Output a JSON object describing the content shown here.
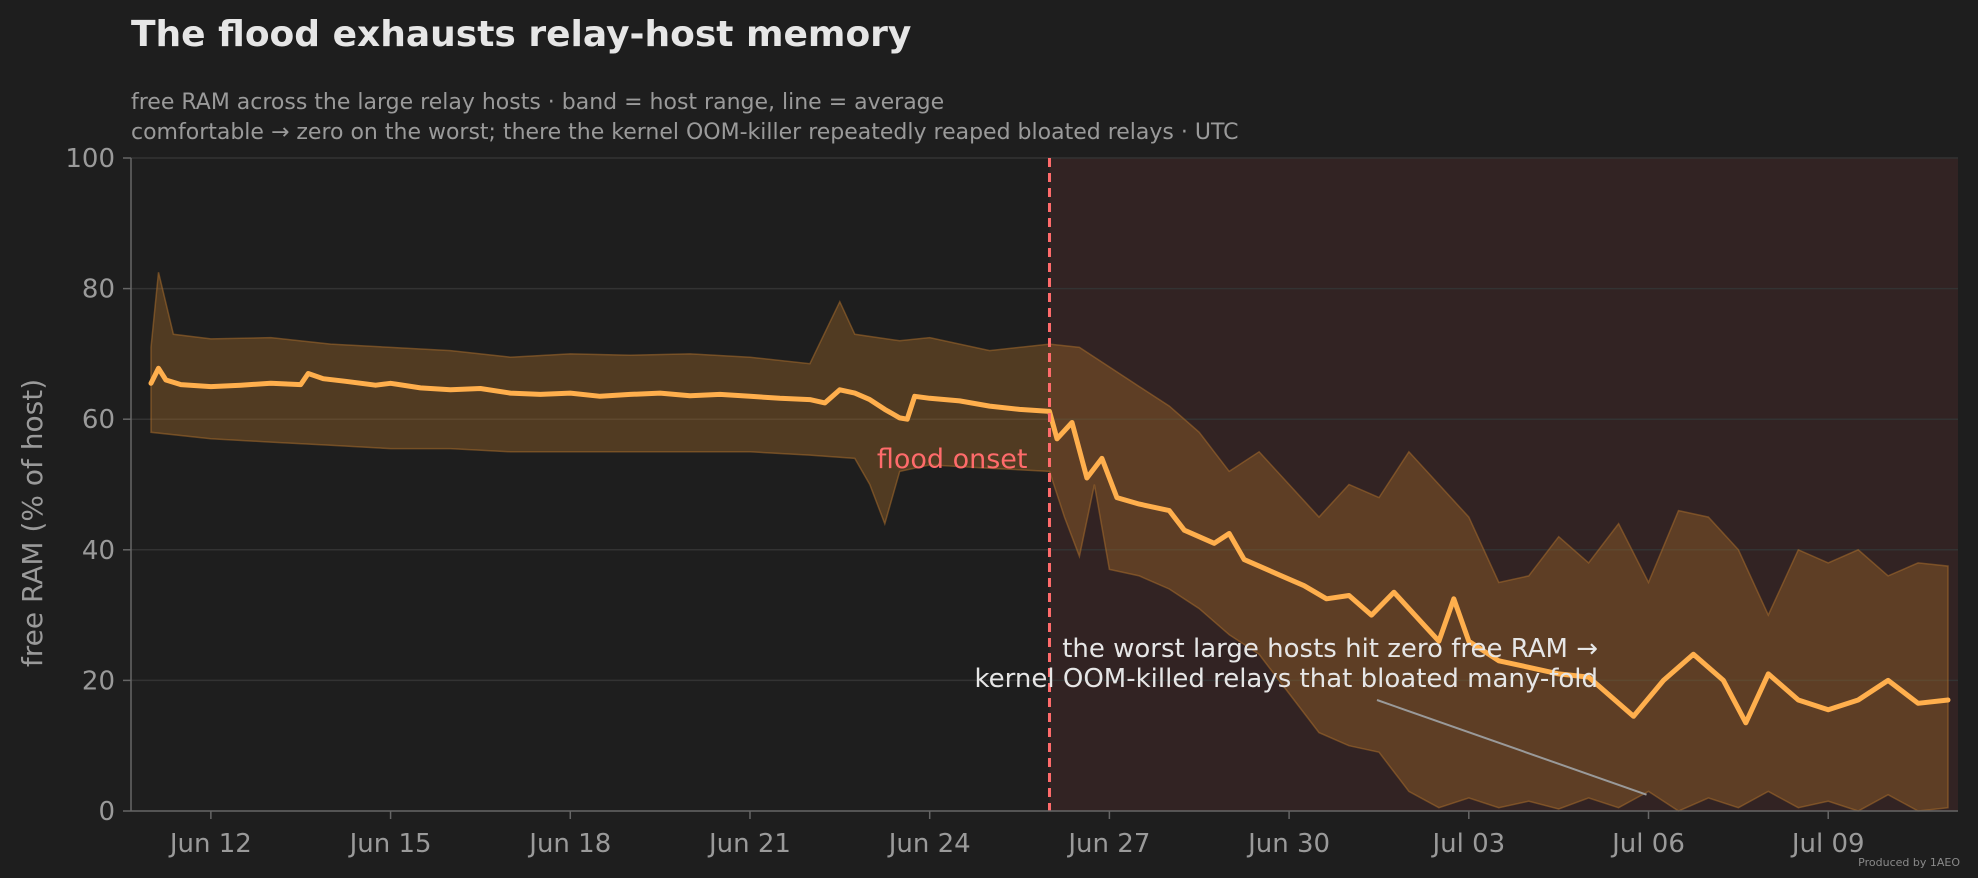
{
  "colors": {
    "background": "#1e1e1e",
    "line": "#ffaf4d",
    "band": "#a56c2b",
    "post_flood_shade": "#3a2626",
    "onset_line": "#ff6b6b",
    "grid": "#333333",
    "axis": "#666666",
    "text_primary": "#e6e6e6",
    "text_muted": "#9a9a9a"
  },
  "credit": "Produced by 1AEO",
  "chart_data": {
    "type": "area",
    "title": "The flood exhausts relay-host memory",
    "subtitle_lines": [
      "free RAM across the large relay hosts · band = host range, line = average",
      "comfortable → zero on the worst; there the kernel OOM-killer repeatedly reaped bloated relays · UTC"
    ],
    "xlabel": "",
    "ylabel": "free RAM (% of host)",
    "x_range": [
      "2025-06-10T16:00",
      "2025-07-11T04:00"
    ],
    "ylim": [
      0,
      100
    ],
    "y_ticks": [
      0,
      20,
      40,
      60,
      80,
      100
    ],
    "x_ticks": [
      {
        "date": "2025-06-12",
        "label": "Jun 12"
      },
      {
        "date": "2025-06-15",
        "label": "Jun 15"
      },
      {
        "date": "2025-06-18",
        "label": "Jun 18"
      },
      {
        "date": "2025-06-21",
        "label": "Jun 21"
      },
      {
        "date": "2025-06-24",
        "label": "Jun 24"
      },
      {
        "date": "2025-06-27",
        "label": "Jun 27"
      },
      {
        "date": "2025-06-30",
        "label": "Jun 30"
      },
      {
        "date": "2025-07-03",
        "label": "Jul 03"
      },
      {
        "date": "2025-07-06",
        "label": "Jul 06"
      },
      {
        "date": "2025-07-09",
        "label": "Jul 09"
      }
    ],
    "grid": "horizontal",
    "flood_onset": {
      "date": "2025-06-26",
      "label": "flood onset"
    },
    "annotation": {
      "lines": [
        "the worst large hosts hit zero free RAM →",
        "kernel OOM-killed relays that bloated many-fold"
      ],
      "points_to": {
        "date": "2025-07-06",
        "y": 2.5
      }
    },
    "series": [
      {
        "name": "average",
        "kind": "line",
        "points": [
          [
            "2025-06-11T00:00",
            65.5
          ],
          [
            "2025-06-11T03:00",
            67.8
          ],
          [
            "2025-06-11T06:00",
            66.0
          ],
          [
            "2025-06-11T12:00",
            65.3
          ],
          [
            "2025-06-12T00:00",
            65.0
          ],
          [
            "2025-06-12T12:00",
            65.2
          ],
          [
            "2025-06-13T00:00",
            65.5
          ],
          [
            "2025-06-13T12:00",
            65.3
          ],
          [
            "2025-06-13T15:00",
            67.0
          ],
          [
            "2025-06-13T21:00",
            66.2
          ],
          [
            "2025-06-14T06:00",
            65.8
          ],
          [
            "2025-06-14T18:00",
            65.2
          ],
          [
            "2025-06-15T00:00",
            65.5
          ],
          [
            "2025-06-15T12:00",
            64.8
          ],
          [
            "2025-06-16T00:00",
            64.5
          ],
          [
            "2025-06-16T12:00",
            64.7
          ],
          [
            "2025-06-17T00:00",
            64.0
          ],
          [
            "2025-06-17T12:00",
            63.8
          ],
          [
            "2025-06-18T00:00",
            64.0
          ],
          [
            "2025-06-18T12:00",
            63.5
          ],
          [
            "2025-06-19T00:00",
            63.8
          ],
          [
            "2025-06-19T12:00",
            64.0
          ],
          [
            "2025-06-20T00:00",
            63.6
          ],
          [
            "2025-06-20T12:00",
            63.8
          ],
          [
            "2025-06-21T00:00",
            63.5
          ],
          [
            "2025-06-21T12:00",
            63.2
          ],
          [
            "2025-06-22T00:00",
            63.0
          ],
          [
            "2025-06-22T06:00",
            62.5
          ],
          [
            "2025-06-22T12:00",
            64.5
          ],
          [
            "2025-06-22T18:00",
            64.0
          ],
          [
            "2025-06-23T00:00",
            63.0
          ],
          [
            "2025-06-23T06:00",
            61.5
          ],
          [
            "2025-06-23T12:00",
            60.2
          ],
          [
            "2025-06-23T15:00",
            60.0
          ],
          [
            "2025-06-23T18:00",
            63.5
          ],
          [
            "2025-06-24T00:00",
            63.2
          ],
          [
            "2025-06-24T12:00",
            62.8
          ],
          [
            "2025-06-25T00:00",
            62.0
          ],
          [
            "2025-06-25T12:00",
            61.5
          ],
          [
            "2025-06-26T00:00",
            61.2
          ],
          [
            "2025-06-26T03:00",
            57.0
          ],
          [
            "2025-06-26T09:00",
            59.5
          ],
          [
            "2025-06-26T15:00",
            51.0
          ],
          [
            "2025-06-26T21:00",
            54.0
          ],
          [
            "2025-06-27T03:00",
            48.0
          ],
          [
            "2025-06-27T12:00",
            47.0
          ],
          [
            "2025-06-28T00:00",
            46.0
          ],
          [
            "2025-06-28T06:00",
            43.0
          ],
          [
            "2025-06-28T18:00",
            41.0
          ],
          [
            "2025-06-29T00:00",
            42.5
          ],
          [
            "2025-06-29T06:00",
            38.5
          ],
          [
            "2025-06-29T12:00",
            37.5
          ],
          [
            "2025-06-29T21:00",
            36.0
          ],
          [
            "2025-06-30T06:00",
            34.5
          ],
          [
            "2025-06-30T15:00",
            32.5
          ],
          [
            "2025-07-01T00:00",
            33.0
          ],
          [
            "2025-07-01T09:00",
            30.0
          ],
          [
            "2025-07-01T18:00",
            33.5
          ],
          [
            "2025-07-02T00:00",
            31.0
          ],
          [
            "2025-07-02T06:00",
            28.5
          ],
          [
            "2025-07-02T12:00",
            26.0
          ],
          [
            "2025-07-02T18:00",
            32.5
          ],
          [
            "2025-07-03T00:00",
            26.0
          ],
          [
            "2025-07-03T12:00",
            23.0
          ],
          [
            "2025-07-04T00:00",
            22.0
          ],
          [
            "2025-07-04T12:00",
            21.0
          ],
          [
            "2025-07-05T00:00",
            20.5
          ],
          [
            "2025-07-05T12:00",
            16.5
          ],
          [
            "2025-07-05T18:00",
            14.5
          ],
          [
            "2025-07-06T06:00",
            20.0
          ],
          [
            "2025-07-06T18:00",
            24.0
          ],
          [
            "2025-07-07T06:00",
            20.0
          ],
          [
            "2025-07-07T15:00",
            13.5
          ],
          [
            "2025-07-08T00:00",
            21.0
          ],
          [
            "2025-07-08T12:00",
            17.0
          ],
          [
            "2025-07-09T00:00",
            15.5
          ],
          [
            "2025-07-09T12:00",
            17.0
          ],
          [
            "2025-07-10T00:00",
            20.0
          ],
          [
            "2025-07-10T12:00",
            16.5
          ],
          [
            "2025-07-11T00:00",
            17.0
          ]
        ]
      },
      {
        "name": "host range",
        "kind": "band",
        "upper": [
          [
            "2025-06-11T00:00",
            71.0
          ],
          [
            "2025-06-11T03:00",
            82.5
          ],
          [
            "2025-06-11T09:00",
            73.0
          ],
          [
            "2025-06-12T00:00",
            72.3
          ],
          [
            "2025-06-13T00:00",
            72.5
          ],
          [
            "2025-06-14T00:00",
            71.5
          ],
          [
            "2025-06-15T00:00",
            71.0
          ],
          [
            "2025-06-16T00:00",
            70.5
          ],
          [
            "2025-06-17T00:00",
            69.5
          ],
          [
            "2025-06-18T00:00",
            70.0
          ],
          [
            "2025-06-19T00:00",
            69.8
          ],
          [
            "2025-06-20T00:00",
            70.0
          ],
          [
            "2025-06-21T00:00",
            69.5
          ],
          [
            "2025-06-22T00:00",
            68.5
          ],
          [
            "2025-06-22T12:00",
            78.0
          ],
          [
            "2025-06-22T18:00",
            73.0
          ],
          [
            "2025-06-23T12:00",
            72.0
          ],
          [
            "2025-06-24T00:00",
            72.5
          ],
          [
            "2025-06-25T00:00",
            70.5
          ],
          [
            "2025-06-26T00:00",
            71.5
          ],
          [
            "2025-06-26T12:00",
            71.0
          ],
          [
            "2025-06-27T00:00",
            68.0
          ],
          [
            "2025-06-27T12:00",
            65.0
          ],
          [
            "2025-06-28T00:00",
            62.0
          ],
          [
            "2025-06-28T12:00",
            58.0
          ],
          [
            "2025-06-29T00:00",
            52.0
          ],
          [
            "2025-06-29T12:00",
            55.0
          ],
          [
            "2025-06-30T00:00",
            50.0
          ],
          [
            "2025-06-30T12:00",
            45.0
          ],
          [
            "2025-07-01T00:00",
            50.0
          ],
          [
            "2025-07-01T12:00",
            48.0
          ],
          [
            "2025-07-02T00:00",
            55.0
          ],
          [
            "2025-07-02T12:00",
            50.0
          ],
          [
            "2025-07-03T00:00",
            45.0
          ],
          [
            "2025-07-03T12:00",
            35.0
          ],
          [
            "2025-07-04T00:00",
            36.0
          ],
          [
            "2025-07-04T12:00",
            42.0
          ],
          [
            "2025-07-05T00:00",
            38.0
          ],
          [
            "2025-07-05T12:00",
            44.0
          ],
          [
            "2025-07-06T00:00",
            35.0
          ],
          [
            "2025-07-06T12:00",
            46.0
          ],
          [
            "2025-07-07T00:00",
            45.0
          ],
          [
            "2025-07-07T12:00",
            40.0
          ],
          [
            "2025-07-08T00:00",
            30.0
          ],
          [
            "2025-07-08T12:00",
            40.0
          ],
          [
            "2025-07-09T00:00",
            38.0
          ],
          [
            "2025-07-09T12:00",
            40.0
          ],
          [
            "2025-07-10T00:00",
            36.0
          ],
          [
            "2025-07-10T12:00",
            38.0
          ],
          [
            "2025-07-11T00:00",
            37.5
          ]
        ],
        "lower": [
          [
            "2025-06-11T00:00",
            58.0
          ],
          [
            "2025-06-12T00:00",
            57.0
          ],
          [
            "2025-06-13T00:00",
            56.5
          ],
          [
            "2025-06-14T00:00",
            56.0
          ],
          [
            "2025-06-15T00:00",
            55.5
          ],
          [
            "2025-06-16T00:00",
            55.5
          ],
          [
            "2025-06-17T00:00",
            55.0
          ],
          [
            "2025-06-18T00:00",
            55.0
          ],
          [
            "2025-06-19T00:00",
            55.0
          ],
          [
            "2025-06-20T00:00",
            55.0
          ],
          [
            "2025-06-21T00:00",
            55.0
          ],
          [
            "2025-06-22T00:00",
            54.5
          ],
          [
            "2025-06-22T18:00",
            54.0
          ],
          [
            "2025-06-23T00:00",
            50.0
          ],
          [
            "2025-06-23T06:00",
            44.0
          ],
          [
            "2025-06-23T12:00",
            52.0
          ],
          [
            "2025-06-24T00:00",
            53.0
          ],
          [
            "2025-06-25T00:00",
            52.5
          ],
          [
            "2025-06-26T00:00",
            52.0
          ],
          [
            "2025-06-26T06:00",
            45.0
          ],
          [
            "2025-06-26T12:00",
            39.0
          ],
          [
            "2025-06-26T18:00",
            50.0
          ],
          [
            "2025-06-27T00:00",
            37.0
          ],
          [
            "2025-06-27T12:00",
            36.0
          ],
          [
            "2025-06-28T00:00",
            34.0
          ],
          [
            "2025-06-28T12:00",
            31.0
          ],
          [
            "2025-06-29T00:00",
            27.0
          ],
          [
            "2025-06-29T12:00",
            24.0
          ],
          [
            "2025-06-30T00:00",
            18.0
          ],
          [
            "2025-06-30T12:00",
            12.0
          ],
          [
            "2025-07-01T00:00",
            10.0
          ],
          [
            "2025-07-01T12:00",
            9.0
          ],
          [
            "2025-07-02T00:00",
            3.0
          ],
          [
            "2025-07-02T12:00",
            0.5
          ],
          [
            "2025-07-03T00:00",
            2.0
          ],
          [
            "2025-07-03T12:00",
            0.5
          ],
          [
            "2025-07-04T00:00",
            1.5
          ],
          [
            "2025-07-04T12:00",
            0.3
          ],
          [
            "2025-07-05T00:00",
            2.0
          ],
          [
            "2025-07-05T12:00",
            0.5
          ],
          [
            "2025-07-06T00:00",
            3.0
          ],
          [
            "2025-07-06T12:00",
            0.0
          ],
          [
            "2025-07-07T00:00",
            2.0
          ],
          [
            "2025-07-07T12:00",
            0.5
          ],
          [
            "2025-07-08T00:00",
            3.0
          ],
          [
            "2025-07-08T12:00",
            0.5
          ],
          [
            "2025-07-09T00:00",
            1.5
          ],
          [
            "2025-07-09T12:00",
            0.0
          ],
          [
            "2025-07-10T00:00",
            2.5
          ],
          [
            "2025-07-10T12:00",
            0.0
          ],
          [
            "2025-07-11T00:00",
            0.5
          ]
        ]
      }
    ]
  }
}
